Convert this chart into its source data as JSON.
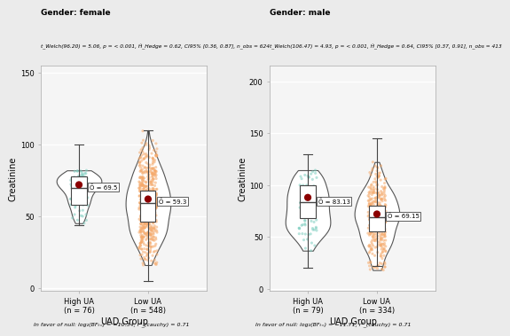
{
  "female": {
    "title": "Gender: female",
    "subtitle": "t_Welch(96.20) = 5.06, p = < 0.001, Ĥ_Hedge = 0.62, CI95% [0.36, 0.87], n_obs = 624",
    "groups": [
      "High UA",
      "Low UA"
    ],
    "ns": [
      76,
      548
    ],
    "medians": [
      69.5,
      59.3
    ],
    "means": [
      72.0,
      62.0
    ],
    "q1": [
      58,
      46
    ],
    "q3": [
      78,
      68
    ],
    "whisker_low": [
      44,
      5
    ],
    "whisker_high": [
      100,
      110
    ],
    "ylim": [
      -2,
      155
    ],
    "yticks": [
      0,
      50,
      100,
      150
    ],
    "ylabel": "Creatinine",
    "xlabel": "UAD.Group",
    "colors": [
      "#7ECEC0",
      "#F5A96A"
    ],
    "footer": "In favor of null: log₂(BFₜ₌) = −10.34, r²_(cauchy) = 0.71"
  },
  "male": {
    "title": "Gender: male",
    "subtitle": "t_Welch(106.47) = 4.93, p = < 0.001, Ĥ_Hedge = 0.64, CI95% [0.37, 0.91], n_obs = 413",
    "groups": [
      "High UA",
      "Low UA"
    ],
    "ns": [
      79,
      334
    ],
    "medians": [
      83.13,
      69.15
    ],
    "means": [
      88.0,
      72.0
    ],
    "q1": [
      68,
      55
    ],
    "q3": [
      100,
      80
    ],
    "whisker_low": [
      20,
      22
    ],
    "whisker_high": [
      130,
      145
    ],
    "ylim": [
      -2,
      215
    ],
    "yticks": [
      0,
      50,
      100,
      150,
      200
    ],
    "ylabel": "Creatinine",
    "xlabel": "UAD.Group",
    "colors": [
      "#7ECEC0",
      "#F5A96A"
    ],
    "footer": "In favor of null: log₂(BFₜ₌) = −11.71, r²_(cauchy) = 0.71"
  },
  "fig_bg": "#EBEBEB",
  "panel_bg": "#F5F5F5"
}
